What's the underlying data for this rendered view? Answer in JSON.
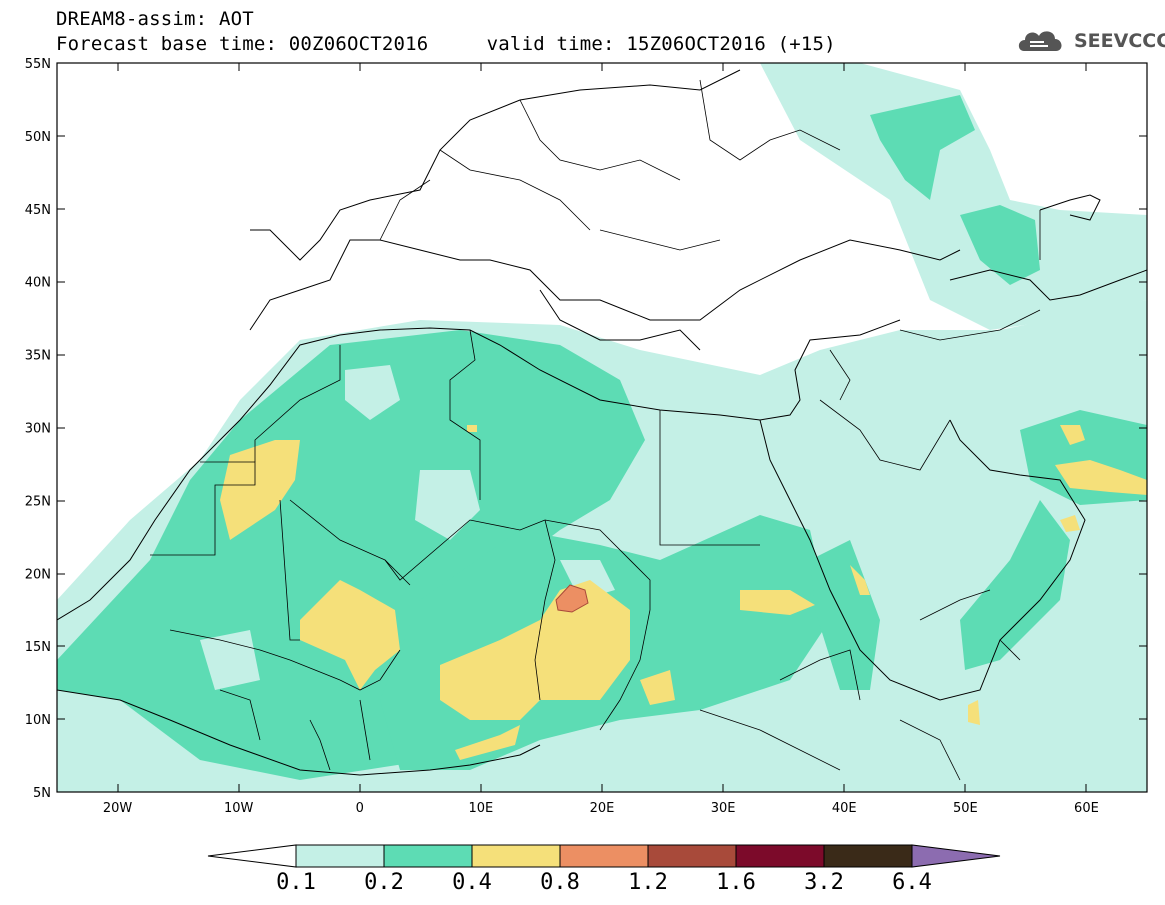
{
  "header": {
    "title": "DREAM8-assim: AOT",
    "base_time_label": "Forecast base time: 00Z06OCT2016",
    "valid_time_label": "valid time: 15Z06OCT2016 (+15)"
  },
  "logo": {
    "text": "SEEVCCC",
    "icon": "cloud-icon"
  },
  "map": {
    "lon_range": [
      -25,
      65
    ],
    "lat_range": [
      5,
      55
    ],
    "lat_labels": [
      "55N",
      "50N",
      "45N",
      "40N",
      "35N",
      "30N",
      "25N",
      "20N",
      "15N",
      "10N",
      "5N"
    ],
    "lon_labels": [
      "20W",
      "10W",
      "0",
      "10E",
      "20E",
      "30E",
      "40E",
      "50E",
      "60E"
    ]
  },
  "colorbar": {
    "levels": [
      "0.1",
      "0.2",
      "0.4",
      "0.8",
      "1.2",
      "1.6",
      "3.2",
      "6.4"
    ],
    "colors": [
      "#ffffff",
      "#c4f0e6",
      "#5ddcb4",
      "#f5e07a",
      "#ec8f63",
      "#a84a3a",
      "#7c0a2a",
      "#3a2a18",
      "#8c6cb0"
    ]
  }
}
